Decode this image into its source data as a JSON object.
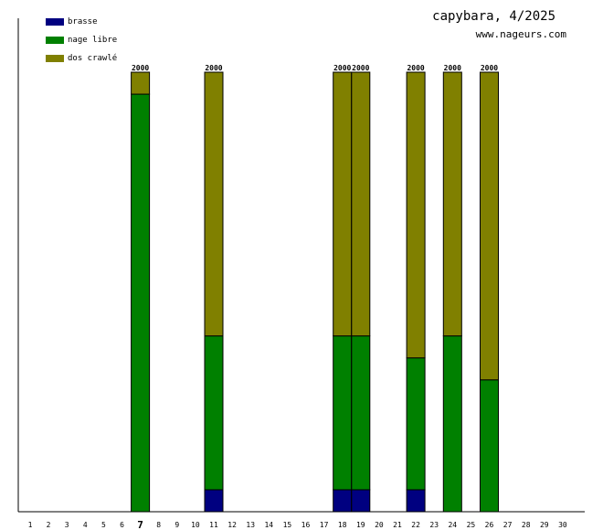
{
  "title": "capybara, 4/2025",
  "subtitle": "www.nageurs.com",
  "legend": [
    {
      "label": "brasse",
      "color": "#000080"
    },
    {
      "label": "nage libre",
      "color": "#008000"
    },
    {
      "label": "dos crawlé",
      "color": "#808000"
    }
  ],
  "chart_data": {
    "type": "bar",
    "stacked": true,
    "categories": [
      "1",
      "2",
      "3",
      "4",
      "5",
      "6",
      "7",
      "8",
      "9",
      "10",
      "11",
      "12",
      "13",
      "14",
      "15",
      "16",
      "17",
      "18",
      "19",
      "20",
      "21",
      "22",
      "23",
      "24",
      "25",
      "26",
      "27",
      "28",
      "29",
      "30"
    ],
    "highlighted_category": "7",
    "series": [
      {
        "name": "brasse",
        "color": "#000080",
        "values": [
          0,
          0,
          0,
          0,
          0,
          0,
          0,
          0,
          0,
          0,
          100,
          0,
          0,
          0,
          0,
          0,
          0,
          100,
          100,
          0,
          0,
          100,
          0,
          0,
          0,
          0,
          0,
          0,
          0,
          0
        ]
      },
      {
        "name": "nage libre",
        "color": "#008000",
        "values": [
          0,
          0,
          0,
          0,
          0,
          0,
          1900,
          0,
          0,
          0,
          700,
          0,
          0,
          0,
          0,
          0,
          0,
          700,
          700,
          0,
          0,
          600,
          0,
          800,
          0,
          600,
          0,
          0,
          0,
          0
        ]
      },
      {
        "name": "dos crawlé",
        "color": "#808000",
        "values": [
          0,
          0,
          0,
          0,
          0,
          0,
          100,
          0,
          0,
          0,
          1200,
          0,
          0,
          0,
          0,
          0,
          0,
          1200,
          1200,
          0,
          0,
          1300,
          0,
          1200,
          0,
          1400,
          0,
          0,
          0,
          0
        ]
      }
    ],
    "totals": [
      null,
      null,
      null,
      null,
      null,
      null,
      "2000",
      null,
      null,
      null,
      "2000",
      null,
      null,
      null,
      null,
      null,
      null,
      "2000",
      "2000",
      null,
      null,
      "2000",
      null,
      "2000",
      null,
      "2000",
      null,
      null,
      null,
      null
    ],
    "ylim": [
      0,
      2000
    ]
  }
}
